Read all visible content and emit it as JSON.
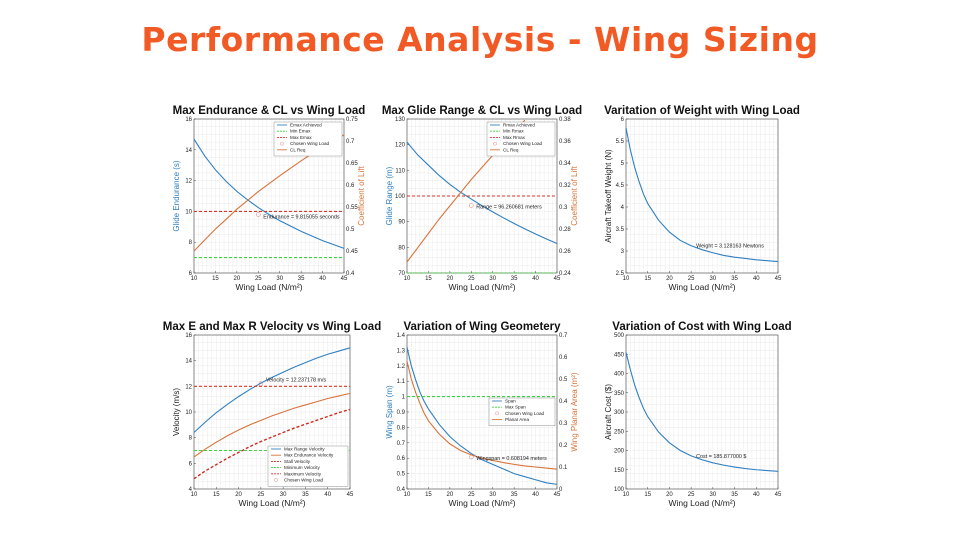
{
  "title": "Performance Analysis - Wing Sizing",
  "chart_data": [
    {
      "type": "line",
      "title": "Max Endurance & CL vs Wing Load",
      "xlabel": "Wing Load (N/m²)",
      "ylabel": "Glide Endurance (s)",
      "y2label": "Coefficient of Lift",
      "xlim": [
        10,
        45
      ],
      "ylim": [
        6,
        16
      ],
      "y2lim": [
        0.4,
        0.75
      ],
      "xticks": [
        10,
        15,
        20,
        25,
        30,
        35,
        40,
        45
      ],
      "yticks": [
        6,
        8,
        10,
        12,
        14,
        16
      ],
      "y2ticks": [
        0.4,
        0.45,
        0.5,
        0.55,
        0.6,
        0.65,
        0.7,
        0.75
      ],
      "grid": true,
      "legend_position": "top-right",
      "x": [
        10,
        12.5,
        15,
        17.5,
        20,
        22.5,
        25,
        27.5,
        30,
        32.5,
        35,
        37.5,
        40,
        42.5,
        45
      ],
      "series": [
        {
          "name": "Emax Achieved",
          "axis": "left",
          "color": "#2f7fc1",
          "style": "solid",
          "values": [
            14.7,
            13.6,
            12.7,
            11.95,
            11.3,
            10.75,
            10.25,
            9.8,
            9.4,
            9.05,
            8.7,
            8.4,
            8.1,
            7.85,
            7.6
          ]
        },
        {
          "name": "Min Emax",
          "axis": "left",
          "color": "#3ed13e",
          "style": "dashed",
          "values": [
            7,
            7,
            7,
            7,
            7,
            7,
            7,
            7,
            7,
            7,
            7,
            7,
            7,
            7,
            7
          ]
        },
        {
          "name": "Max Emax",
          "axis": "left",
          "color": "#d9362b",
          "style": "dashed",
          "values": [
            10,
            10,
            10,
            10,
            10,
            10,
            10,
            10,
            10,
            10,
            10,
            10,
            10,
            10,
            10
          ]
        },
        {
          "name": "Chosen Wing Load",
          "axis": "left",
          "color": "#e08a8a",
          "style": "marker",
          "values": [
            null,
            null,
            null,
            null,
            null,
            null,
            9.8,
            null,
            null,
            null,
            null,
            null,
            null,
            null,
            null
          ]
        },
        {
          "name": "CL Req",
          "axis": "right",
          "color": "#d9733a",
          "style": "solid",
          "values": [
            0.45,
            0.475,
            0.5,
            0.522,
            0.545,
            0.565,
            0.585,
            0.603,
            0.621,
            0.638,
            0.655,
            0.671,
            0.686,
            0.7,
            0.714
          ]
        }
      ],
      "annotation": "Endurance = 9.815055 seconds",
      "annotation_point": [
        25,
        9.8
      ]
    },
    {
      "type": "line",
      "title": "Max Glide Range & CL vs Wing Load",
      "xlabel": "Wing Load (N/m²)",
      "ylabel": "Glide Range (m)",
      "y2label": "Coefficient of Lift",
      "xlim": [
        10,
        45
      ],
      "ylim": [
        70,
        130
      ],
      "y2lim": [
        0.24,
        0.38
      ],
      "xticks": [
        10,
        15,
        20,
        25,
        30,
        35,
        40,
        45
      ],
      "yticks": [
        70,
        80,
        90,
        100,
        110,
        120,
        130
      ],
      "y2ticks": [
        0.24,
        0.26,
        0.28,
        0.3,
        0.32,
        0.34,
        0.36,
        0.38
      ],
      "grid": true,
      "legend_position": "top-right",
      "x": [
        10,
        12.5,
        15,
        17.5,
        20,
        22.5,
        25,
        27.5,
        30,
        32.5,
        35,
        37.5,
        40,
        42.5,
        45
      ],
      "series": [
        {
          "name": "Rmax Achieved",
          "axis": "left",
          "color": "#2f7fc1",
          "style": "solid",
          "values": [
            121,
            116,
            112,
            108,
            104.5,
            101.5,
            98.8,
            96.2,
            93.8,
            91.5,
            89.3,
            87.2,
            85.2,
            83.3,
            81.5
          ]
        },
        {
          "name": "Min Rmax",
          "axis": "left",
          "color": "#3ed13e",
          "style": "dashed",
          "values": [
            70,
            70,
            70,
            70,
            70,
            70,
            70,
            70,
            70,
            70,
            70,
            70,
            70,
            70,
            70
          ]
        },
        {
          "name": "Max Rmax",
          "axis": "left",
          "color": "#d9362b",
          "style": "dashed",
          "values": [
            100,
            100,
            100,
            100,
            100,
            100,
            100,
            100,
            100,
            100,
            100,
            100,
            100,
            100,
            100
          ]
        },
        {
          "name": "Chosen Wing Load",
          "axis": "left",
          "color": "#e08a8a",
          "style": "marker",
          "values": [
            null,
            null,
            null,
            null,
            null,
            null,
            96.3,
            null,
            null,
            null,
            null,
            null,
            null,
            null,
            null
          ]
        },
        {
          "name": "CL Req",
          "axis": "right",
          "color": "#d9733a",
          "style": "solid",
          "values": [
            0.25,
            0.263,
            0.276,
            0.289,
            0.301,
            0.313,
            0.325,
            0.336,
            0.347,
            0.358,
            0.369,
            0.379,
            null,
            null,
            null
          ]
        }
      ],
      "annotation": "Range = 96.260681 meters",
      "annotation_point": [
        25,
        96.3
      ]
    },
    {
      "type": "line",
      "title": "Varitation of Weight with Wing Load",
      "xlabel": "Wing Load (N/m²)",
      "ylabel": "Aircraft Takeoff Weight (N)",
      "xlim": [
        10,
        45
      ],
      "ylim": [
        2.5,
        6
      ],
      "xticks": [
        10,
        15,
        20,
        25,
        30,
        35,
        40,
        45
      ],
      "yticks": [
        2.5,
        3,
        3.5,
        4,
        4.5,
        5,
        5.5,
        6
      ],
      "grid": true,
      "x": [
        10,
        11,
        12,
        13,
        14,
        15,
        17.5,
        20,
        22.5,
        25,
        27.5,
        30,
        32.5,
        35,
        37.5,
        40,
        42.5,
        45
      ],
      "series": [
        {
          "name": "",
          "color": "#2f7fc1",
          "style": "solid",
          "values": [
            5.8,
            5.3,
            4.9,
            4.58,
            4.3,
            4.08,
            3.7,
            3.43,
            3.24,
            3.12,
            3.03,
            2.96,
            2.9,
            2.86,
            2.83,
            2.8,
            2.78,
            2.76
          ]
        }
      ],
      "annotation": "Weight = 3.128163 Newtons",
      "annotation_point": [
        25,
        3.128
      ]
    },
    {
      "type": "line",
      "title": "Max E and Max R Velocity vs Wing Load",
      "xlabel": "Wing Load (N/m²)",
      "ylabel": "Velocity (m/s)",
      "xlim": [
        10,
        45
      ],
      "ylim": [
        4,
        16
      ],
      "xticks": [
        10,
        15,
        20,
        25,
        30,
        35,
        40,
        45
      ],
      "yticks": [
        4,
        6,
        8,
        10,
        12,
        14,
        16
      ],
      "grid": true,
      "legend_position": "bottom-right",
      "x": [
        10,
        12.5,
        15,
        17.5,
        20,
        22.5,
        25,
        27.5,
        30,
        32.5,
        35,
        37.5,
        40,
        42.5,
        45
      ],
      "series": [
        {
          "name": "Max Range Velocity",
          "color": "#2f7fc1",
          "style": "solid",
          "values": [
            8.4,
            9.2,
            9.95,
            10.6,
            11.2,
            11.75,
            12.25,
            12.7,
            13.1,
            13.5,
            13.85,
            14.2,
            14.5,
            14.75,
            15
          ]
        },
        {
          "name": "Max Endurance Velocity",
          "color": "#d9733a",
          "style": "solid",
          "values": [
            6.5,
            7.1,
            7.65,
            8.15,
            8.6,
            9.0,
            9.35,
            9.7,
            10.0,
            10.3,
            10.55,
            10.8,
            11.05,
            11.25,
            11.45
          ]
        },
        {
          "name": "Stall Velocity",
          "color": "#cc2a1e",
          "style": "dashed",
          "values": [
            4.8,
            5.4,
            5.9,
            6.4,
            6.85,
            7.3,
            7.7,
            8.05,
            8.4,
            8.75,
            9.05,
            9.35,
            9.65,
            9.95,
            10.2
          ]
        },
        {
          "name": "Minimum Velocity",
          "color": "#3ed13e",
          "style": "dashed",
          "values": [
            7,
            7,
            7,
            7,
            7,
            7,
            7,
            7,
            7,
            7,
            7,
            7,
            7,
            7,
            7
          ]
        },
        {
          "name": "Maximum Velocity",
          "color": "#d9362b",
          "style": "dashed",
          "values": [
            12,
            12,
            12,
            12,
            12,
            12,
            12,
            12,
            12,
            12,
            12,
            12,
            12,
            12,
            12
          ]
        },
        {
          "name": "Chosen Wing Load",
          "color": "#e08a8a",
          "style": "marker",
          "values": [
            null,
            null,
            null,
            null,
            null,
            null,
            12.2,
            null,
            null,
            null,
            null,
            null,
            null,
            null,
            null
          ]
        }
      ],
      "annotation": "Velocity = 12.237178 m/s",
      "annotation_point": [
        25,
        12.24
      ]
    },
    {
      "type": "line",
      "title": "Variation of Wing Geometery",
      "xlabel": "Wing Load (N/m²)",
      "ylabel": "Wing Span (m)",
      "y2label": "Wing Planar Area (m²)",
      "xlim": [
        10,
        45
      ],
      "ylim": [
        0.4,
        1.4
      ],
      "y2lim": [
        0,
        0.7
      ],
      "xticks": [
        10,
        15,
        20,
        25,
        30,
        35,
        40,
        45
      ],
      "yticks": [
        0.4,
        0.5,
        0.6,
        0.7,
        0.8,
        0.9,
        1,
        1.1,
        1.2,
        1.3,
        1.4
      ],
      "y2ticks": [
        0,
        0.1,
        0.2,
        0.3,
        0.4,
        0.5,
        0.6,
        0.7
      ],
      "grid": true,
      "legend_position": "middle-right",
      "x": [
        10,
        11,
        12,
        13,
        14,
        15,
        17.5,
        20,
        22.5,
        25,
        27.5,
        30,
        32.5,
        35,
        37.5,
        40,
        42.5,
        45
      ],
      "series": [
        {
          "name": "Span",
          "axis": "left",
          "color": "#2f7fc1",
          "style": "solid",
          "values": [
            1.32,
            1.2,
            1.11,
            1.03,
            0.97,
            0.92,
            0.82,
            0.74,
            0.68,
            0.63,
            0.59,
            0.56,
            0.53,
            0.5,
            0.48,
            0.46,
            0.44,
            0.43
          ]
        },
        {
          "name": "Max Span",
          "axis": "left",
          "color": "#3ed13e",
          "style": "dashed",
          "values": [
            1,
            1,
            1,
            1,
            1,
            1,
            1,
            1,
            1,
            1,
            1,
            1,
            1,
            1,
            1,
            1,
            1,
            1
          ]
        },
        {
          "name": "Chosen Wing Load",
          "axis": "left",
          "color": "#e08a8a",
          "style": "marker",
          "values": [
            null,
            null,
            null,
            null,
            null,
            null,
            null,
            null,
            null,
            0.608,
            null,
            null,
            null,
            null,
            null,
            null,
            null,
            null
          ]
        },
        {
          "name": "Planar Area",
          "axis": "right",
          "color": "#d9733a",
          "style": "solid",
          "values": [
            0.58,
            0.5,
            0.44,
            0.39,
            0.345,
            0.31,
            0.25,
            0.205,
            0.175,
            0.155,
            0.14,
            0.13,
            0.12,
            0.112,
            0.105,
            0.1,
            0.095,
            0.09
          ]
        }
      ],
      "annotation": "Wingspan = 0.608194 meters",
      "annotation_point": [
        25,
        0.608
      ]
    },
    {
      "type": "line",
      "title": "Variation of Cost with Wing Load",
      "xlabel": "Wing Load (N/m²)",
      "ylabel": "Aircraft Cost ($)",
      "xlim": [
        10,
        45
      ],
      "ylim": [
        100,
        500
      ],
      "xticks": [
        10,
        15,
        20,
        25,
        30,
        35,
        40,
        45
      ],
      "yticks": [
        100,
        150,
        200,
        250,
        300,
        350,
        400,
        450,
        500
      ],
      "grid": true,
      "x": [
        10,
        11,
        12,
        13,
        14,
        15,
        17.5,
        20,
        22.5,
        25,
        27.5,
        30,
        32.5,
        35,
        37.5,
        40,
        42.5,
        45
      ],
      "series": [
        {
          "name": "",
          "color": "#2f7fc1",
          "style": "solid",
          "values": [
            455,
            410,
            370,
            338,
            310,
            288,
            248,
            220,
            200,
            186,
            176,
            168,
            162,
            157,
            153,
            150,
            148,
            146
          ]
        }
      ],
      "annotation": "Cost = 185.877000 $",
      "annotation_point": [
        25,
        186
      ]
    }
  ]
}
